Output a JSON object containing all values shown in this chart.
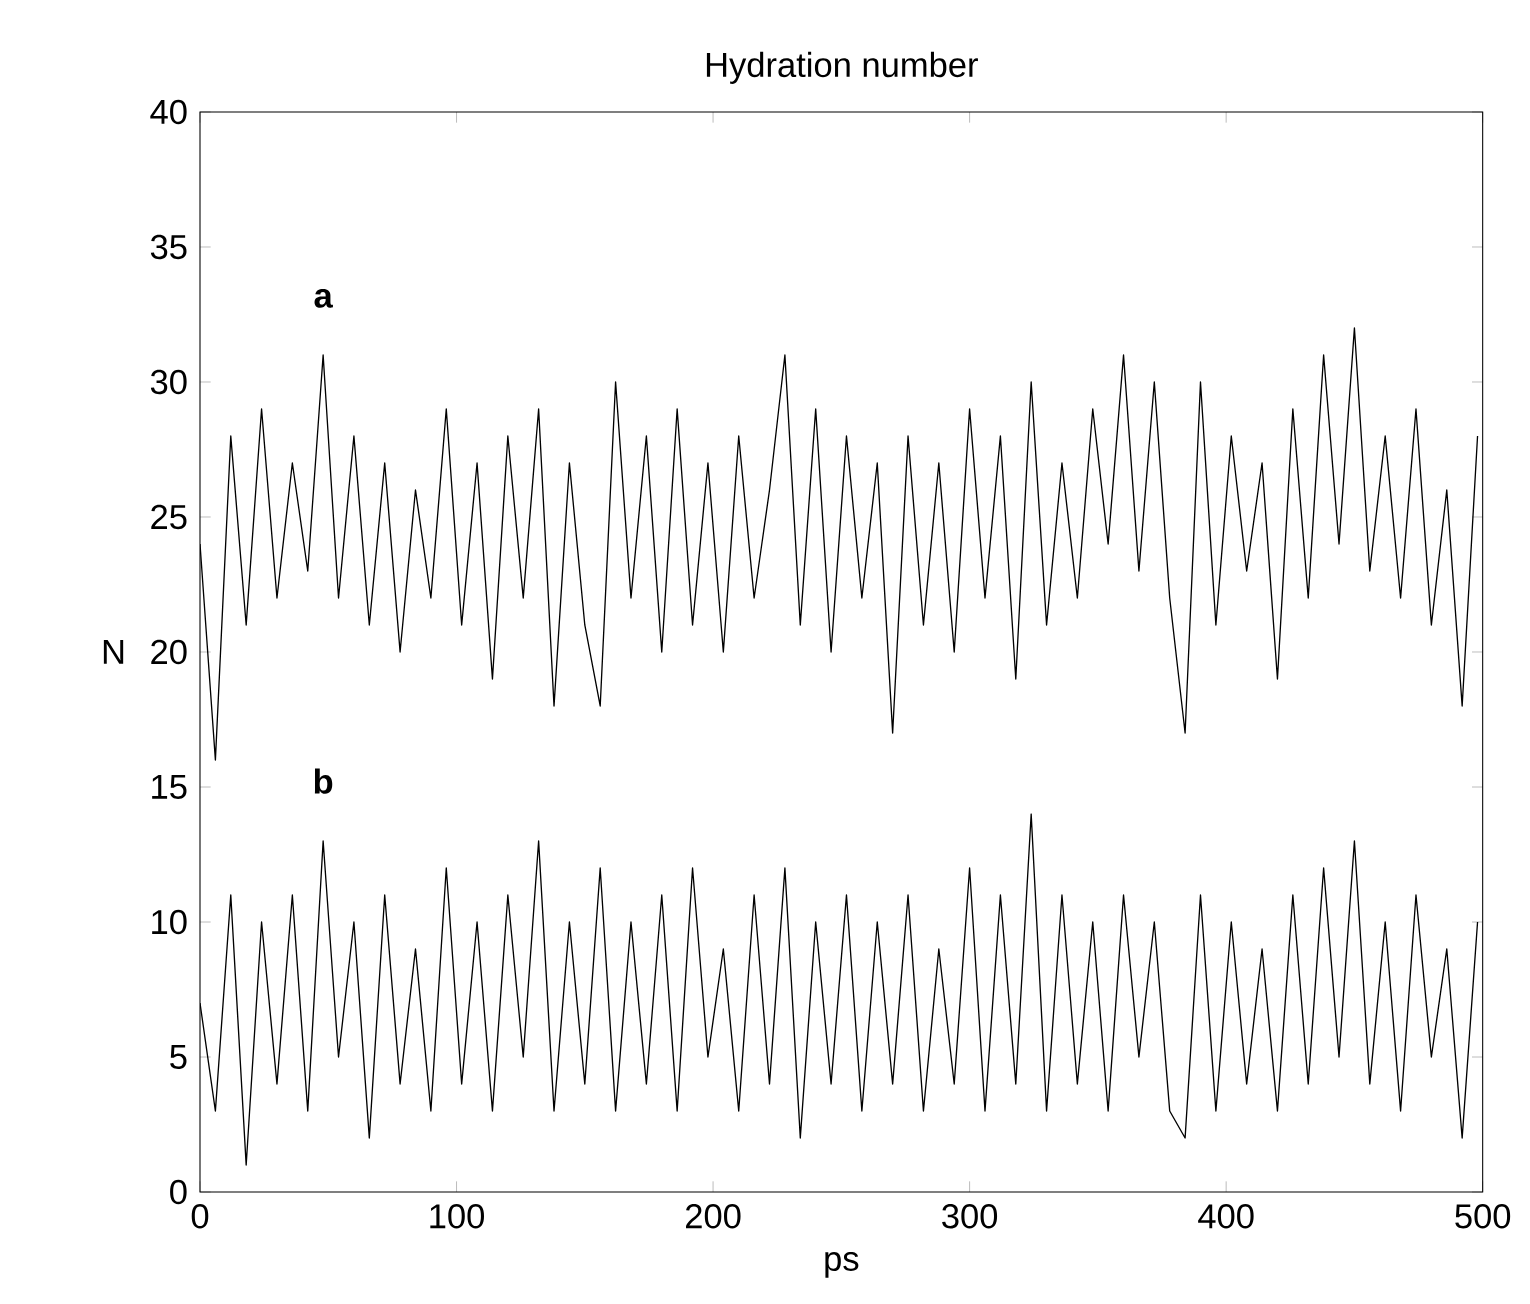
{
  "chart_data": {
    "type": "line",
    "title": "Hydration number",
    "xlabel": "ps",
    "ylabel": "N",
    "xlim": [
      0,
      500
    ],
    "xticks": [
      0,
      100,
      200,
      300,
      400,
      500
    ],
    "ylim": [
      0,
      40
    ],
    "yticks": [
      0,
      5,
      10,
      15,
      20,
      25,
      30,
      35,
      40
    ],
    "legend": false,
    "grid": false,
    "marker": "none",
    "line_style": "solid",
    "series": [
      {
        "name": "a",
        "color": "#000000",
        "x": [
          0,
          6,
          12,
          18,
          24,
          30,
          36,
          42,
          48,
          54,
          60,
          66,
          72,
          78,
          84,
          90,
          96,
          102,
          108,
          114,
          120,
          126,
          132,
          138,
          144,
          150,
          156,
          162,
          168,
          174,
          180,
          186,
          192,
          198,
          204,
          210,
          216,
          222,
          228,
          234,
          240,
          246,
          252,
          258,
          264,
          270,
          276,
          282,
          288,
          294,
          300,
          306,
          312,
          318,
          324,
          330,
          336,
          342,
          348,
          354,
          360,
          366,
          372,
          378,
          384,
          390,
          396,
          402,
          408,
          414,
          420,
          426,
          432,
          438,
          444,
          450,
          456,
          462,
          468,
          474,
          480,
          486,
          492,
          498
        ],
        "values": [
          24,
          16,
          28,
          21,
          29,
          22,
          27,
          23,
          31,
          22,
          28,
          21,
          27,
          20,
          26,
          22,
          29,
          21,
          27,
          19,
          28,
          22,
          29,
          18,
          27,
          21,
          18,
          30,
          22,
          28,
          20,
          29,
          21,
          27,
          20,
          28,
          22,
          26,
          31,
          21,
          29,
          20,
          28,
          22,
          27,
          17,
          28,
          21,
          27,
          20,
          29,
          22,
          28,
          19,
          30,
          21,
          27,
          22,
          29,
          24,
          31,
          23,
          30,
          22,
          17,
          30,
          21,
          28,
          23,
          27,
          19,
          29,
          22,
          31,
          24,
          32,
          23,
          28,
          22,
          29,
          21,
          26,
          18,
          28
        ]
      },
      {
        "name": "b",
        "color": "#000000",
        "x": [
          0,
          6,
          12,
          18,
          24,
          30,
          36,
          42,
          48,
          54,
          60,
          66,
          72,
          78,
          84,
          90,
          96,
          102,
          108,
          114,
          120,
          126,
          132,
          138,
          144,
          150,
          156,
          162,
          168,
          174,
          180,
          186,
          192,
          198,
          204,
          210,
          216,
          222,
          228,
          234,
          240,
          246,
          252,
          258,
          264,
          270,
          276,
          282,
          288,
          294,
          300,
          306,
          312,
          318,
          324,
          330,
          336,
          342,
          348,
          354,
          360,
          366,
          372,
          378,
          384,
          390,
          396,
          402,
          408,
          414,
          420,
          426,
          432,
          438,
          444,
          450,
          456,
          462,
          468,
          474,
          480,
          486,
          492,
          498
        ],
        "values": [
          7,
          3,
          11,
          1,
          10,
          4,
          11,
          3,
          13,
          5,
          10,
          2,
          11,
          4,
          9,
          3,
          12,
          4,
          10,
          3,
          11,
          5,
          13,
          3,
          10,
          4,
          12,
          3,
          10,
          4,
          11,
          3,
          12,
          5,
          9,
          3,
          11,
          4,
          12,
          2,
          10,
          4,
          11,
          3,
          10,
          4,
          11,
          3,
          9,
          4,
          12,
          3,
          11,
          4,
          14,
          3,
          11,
          4,
          10,
          3,
          11,
          5,
          10,
          3,
          2,
          11,
          3,
          10,
          4,
          9,
          3,
          11,
          4,
          12,
          5,
          13,
          4,
          10,
          3,
          11,
          5,
          9,
          2,
          10
        ]
      }
    ]
  }
}
